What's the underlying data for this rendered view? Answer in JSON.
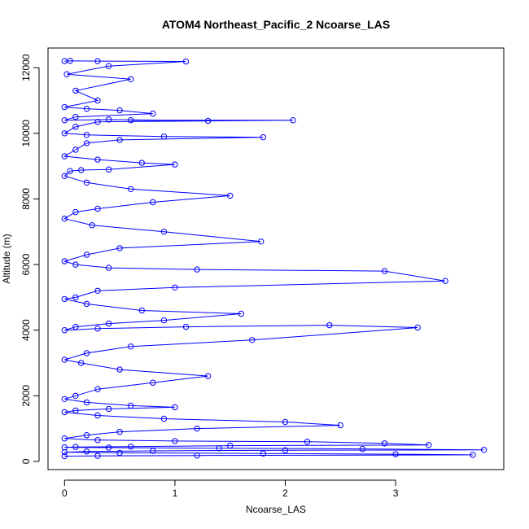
{
  "chart_data": {
    "type": "scatter",
    "title": "ATOM4 Northeast_Pacific_2 Ncoarse_LAS",
    "xlabel": "Ncoarse_LAS",
    "ylabel": "Altitude (m)",
    "xlim": [
      -0.15,
      3.98
    ],
    "ylim": [
      -250,
      12600
    ],
    "xticks": [
      0,
      1,
      2,
      3
    ],
    "xtick_labels": [
      "0",
      "1",
      "2",
      "3"
    ],
    "yticks": [
      0,
      2000,
      4000,
      6000,
      8000,
      10000,
      12000
    ],
    "ytick_labels": [
      "0",
      "2000",
      "4000",
      "6000",
      "8000",
      "10000",
      "12000"
    ],
    "grid": false,
    "legend": "none",
    "style": "points connected by lines (profile trace)",
    "marker": "open circle",
    "color": "#0000ff",
    "series": [
      {
        "x": [
          0.0,
          0.05,
          0.3,
          1.1,
          0.4,
          0.02,
          0.6,
          0.1,
          0.3,
          0.0,
          0.2,
          0.5,
          0.8,
          0.1,
          0.0,
          0.4,
          1.3,
          0.6,
          2.07,
          0.3,
          0.1,
          0.0,
          0.2,
          0.9,
          1.8,
          0.5,
          0.2,
          0.1,
          0.0,
          0.3,
          0.7,
          1.0,
          0.4,
          0.15,
          0.05,
          0.0,
          0.2,
          0.6,
          1.5,
          0.8,
          0.3,
          0.1,
          0.0,
          0.25,
          0.9,
          1.78,
          0.5,
          0.2,
          0.0,
          0.1,
          0.4,
          1.2,
          2.9,
          3.45,
          1.0,
          0.3,
          0.1,
          0.0,
          0.2,
          0.7,
          1.6,
          0.9,
          0.4,
          0.1,
          0.0,
          0.3,
          1.1,
          2.4,
          3.2,
          1.7,
          0.6,
          0.2,
          0.0,
          0.15,
          0.5,
          1.3,
          0.8,
          0.3,
          0.1,
          0.0,
          0.2,
          0.6,
          1.0,
          0.4,
          0.1,
          0.0,
          0.3,
          0.9,
          2.0,
          2.5,
          1.2,
          0.5,
          0.2,
          0.0,
          0.3,
          1.0,
          2.2,
          2.9,
          3.3,
          1.5,
          0.6,
          0.1,
          0.0,
          0.4,
          1.4,
          2.7,
          3.8,
          2.0,
          0.8,
          0.2,
          0.0,
          0.5,
          1.8,
          3.0,
          3.7,
          1.2,
          0.3,
          0.0
        ],
        "y": [
          12200,
          12210,
          12200,
          12190,
          12050,
          11800,
          11650,
          11300,
          11000,
          10800,
          10750,
          10700,
          10600,
          10500,
          10400,
          10420,
          10380,
          10400,
          10400,
          10350,
          10200,
          10000,
          9950,
          9900,
          9880,
          9800,
          9700,
          9500,
          9300,
          9200,
          9100,
          9050,
          8900,
          8880,
          8850,
          8700,
          8500,
          8300,
          8100,
          7900,
          7700,
          7600,
          7400,
          7200,
          7000,
          6700,
          6500,
          6300,
          6100,
          6000,
          5900,
          5850,
          5800,
          5500,
          5300,
          5200,
          5000,
          4950,
          4800,
          4600,
          4500,
          4300,
          4200,
          4100,
          4000,
          4050,
          4100,
          4150,
          4080,
          3700,
          3500,
          3300,
          3100,
          3000,
          2800,
          2600,
          2400,
          2200,
          2000,
          1900,
          1800,
          1700,
          1650,
          1600,
          1550,
          1500,
          1400,
          1300,
          1200,
          1100,
          1000,
          900,
          800,
          700,
          650,
          620,
          600,
          550,
          500,
          480,
          450,
          440,
          430,
          420,
          400,
          380,
          350,
          340,
          320,
          300,
          280,
          260,
          240,
          220,
          200,
          180,
          170,
          160
        ]
      }
    ]
  }
}
